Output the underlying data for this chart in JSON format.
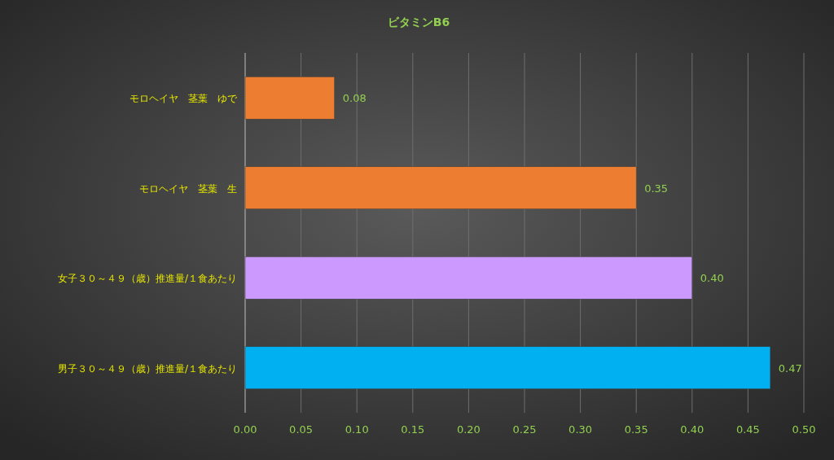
{
  "chart_data": {
    "type": "bar",
    "orientation": "horizontal",
    "title": "ビタミンB6",
    "categories": [
      "モロヘイヤ　茎葉　ゆで",
      "モロヘイヤ　茎葉　生",
      "女子３０～４９（歳）推進量/１食あたり",
      "男子３０～４９（歳）推進量/１食あたり"
    ],
    "values": [
      0.08,
      0.35,
      0.4,
      0.47
    ],
    "colors": [
      "#ed7d31",
      "#ed7d31",
      "#cc99ff",
      "#00b0f0"
    ],
    "value_labels": [
      "0.08",
      "0.35",
      "0.40",
      "0.47"
    ],
    "xlim": [
      0,
      0.5
    ],
    "xticks": [
      {
        "value": 0,
        "label": "0.00"
      },
      {
        "value": 0.05,
        "label": "0.05"
      },
      {
        "value": 0.1,
        "label": "0.10"
      },
      {
        "value": 0.15,
        "label": "0.15"
      },
      {
        "value": 0.2,
        "label": "0.20"
      },
      {
        "value": 0.25,
        "label": "0.25"
      },
      {
        "value": 0.3,
        "label": "0.30"
      },
      {
        "value": 0.35,
        "label": "0.35"
      },
      {
        "value": 0.4,
        "label": "0.40"
      },
      {
        "value": 0.45,
        "label": "0.45"
      },
      {
        "value": 0.5,
        "label": "0.50"
      }
    ],
    "grid": "x"
  }
}
